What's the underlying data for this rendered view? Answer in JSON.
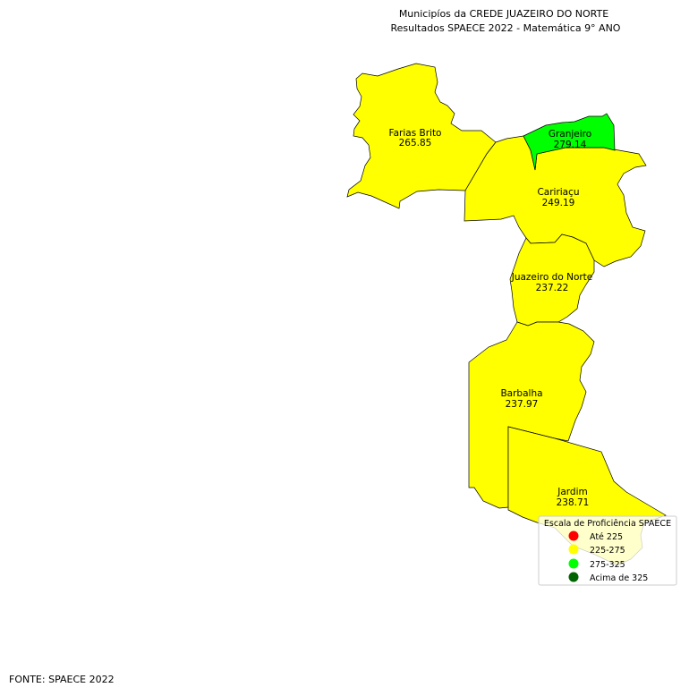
{
  "title": {
    "line1": "Municipíos da CREDE JUAZEIRO DO NORTE",
    "line2": "Resultados SPAECE 2022 - Matemática 9° ANO"
  },
  "municipalities": [
    {
      "name": "Farias Brito",
      "value": "265.85",
      "color": "#ffff00"
    },
    {
      "name": "Granjeiro",
      "value": "279.14",
      "color": "#00ff00"
    },
    {
      "name": "Caririaçu",
      "value": "249.19",
      "color": "#ffff00"
    },
    {
      "name": "Juazeiro do Norte",
      "value": "237.22",
      "color": "#ffff00"
    },
    {
      "name": "Barbalha",
      "value": "237.97",
      "color": "#ffff00"
    },
    {
      "name": "Jardim",
      "value": "238.71",
      "color": "#ffff00"
    }
  ],
  "legend": {
    "title": "Escala de Proficiência SPAECE",
    "items": [
      {
        "label": "Até 225",
        "color": "#ff0000"
      },
      {
        "label": "225-275",
        "color": "#ffff00"
      },
      {
        "label": "275-325",
        "color": "#00ff00"
      },
      {
        "label": "Acima de 325",
        "color": "#006400"
      }
    ]
  },
  "source": "FONTE: SPAECE 2022"
}
